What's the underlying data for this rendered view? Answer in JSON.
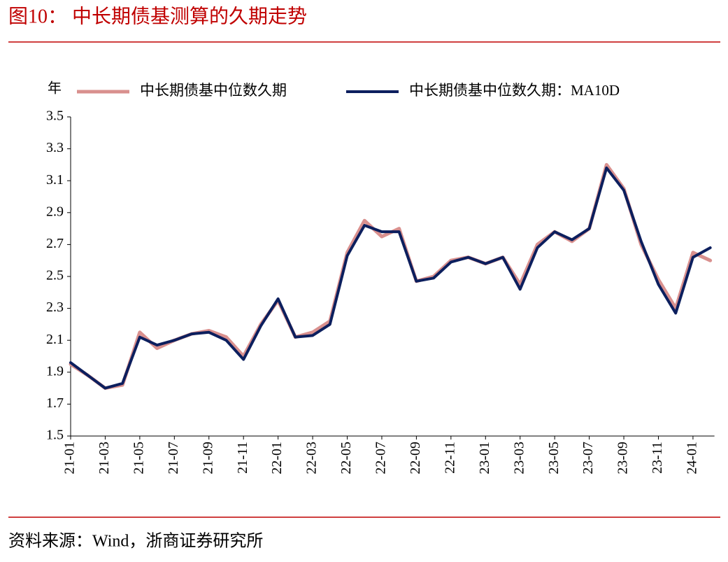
{
  "chart_data": {
    "type": "line",
    "title": "图10：  中长期债基测算的久期走势",
    "y_label": "年",
    "source": "资料来源：Wind，浙商证券研究所",
    "categories": [
      "21-01",
      null,
      "21-03",
      null,
      "21-05",
      null,
      "21-07",
      null,
      "21-09",
      null,
      "21-11",
      null,
      "22-01",
      null,
      "22-03",
      null,
      "22-05",
      null,
      "22-07",
      null,
      "22-09",
      null,
      "22-11",
      null,
      "23-01",
      null,
      "23-03",
      null,
      "23-05",
      null,
      "23-07",
      null,
      "23-09",
      null,
      "23-11",
      null,
      "24-01",
      null
    ],
    "series": [
      {
        "name": "中长期债基中位数久期",
        "color": "#d9908e",
        "values": [
          1.95,
          1.88,
          1.8,
          1.82,
          2.15,
          2.05,
          2.1,
          2.14,
          2.16,
          2.12,
          2.0,
          2.2,
          2.35,
          2.12,
          2.15,
          2.22,
          2.65,
          2.85,
          2.75,
          2.8,
          2.47,
          2.5,
          2.6,
          2.62,
          2.58,
          2.62,
          2.45,
          2.7,
          2.78,
          2.72,
          2.8,
          3.2,
          3.05,
          2.7,
          2.48,
          2.3,
          2.65,
          2.6
        ]
      },
      {
        "name": "中长期债基中位数久期：MA10D",
        "color": "#0c1f5e",
        "values": [
          1.96,
          1.88,
          1.8,
          1.83,
          2.12,
          2.07,
          2.1,
          2.14,
          2.15,
          2.1,
          1.98,
          2.19,
          2.36,
          2.12,
          2.13,
          2.2,
          2.63,
          2.82,
          2.78,
          2.78,
          2.47,
          2.49,
          2.59,
          2.62,
          2.58,
          2.62,
          2.42,
          2.68,
          2.78,
          2.73,
          2.8,
          3.18,
          3.04,
          2.72,
          2.45,
          2.27,
          2.62,
          2.68
        ]
      }
    ],
    "ylim": [
      1.5,
      3.5
    ],
    "yticks": [
      1.5,
      1.7,
      1.9,
      2.1,
      2.3,
      2.5,
      2.7,
      2.9,
      3.1,
      3.3,
      3.5
    ],
    "legend": "top"
  }
}
